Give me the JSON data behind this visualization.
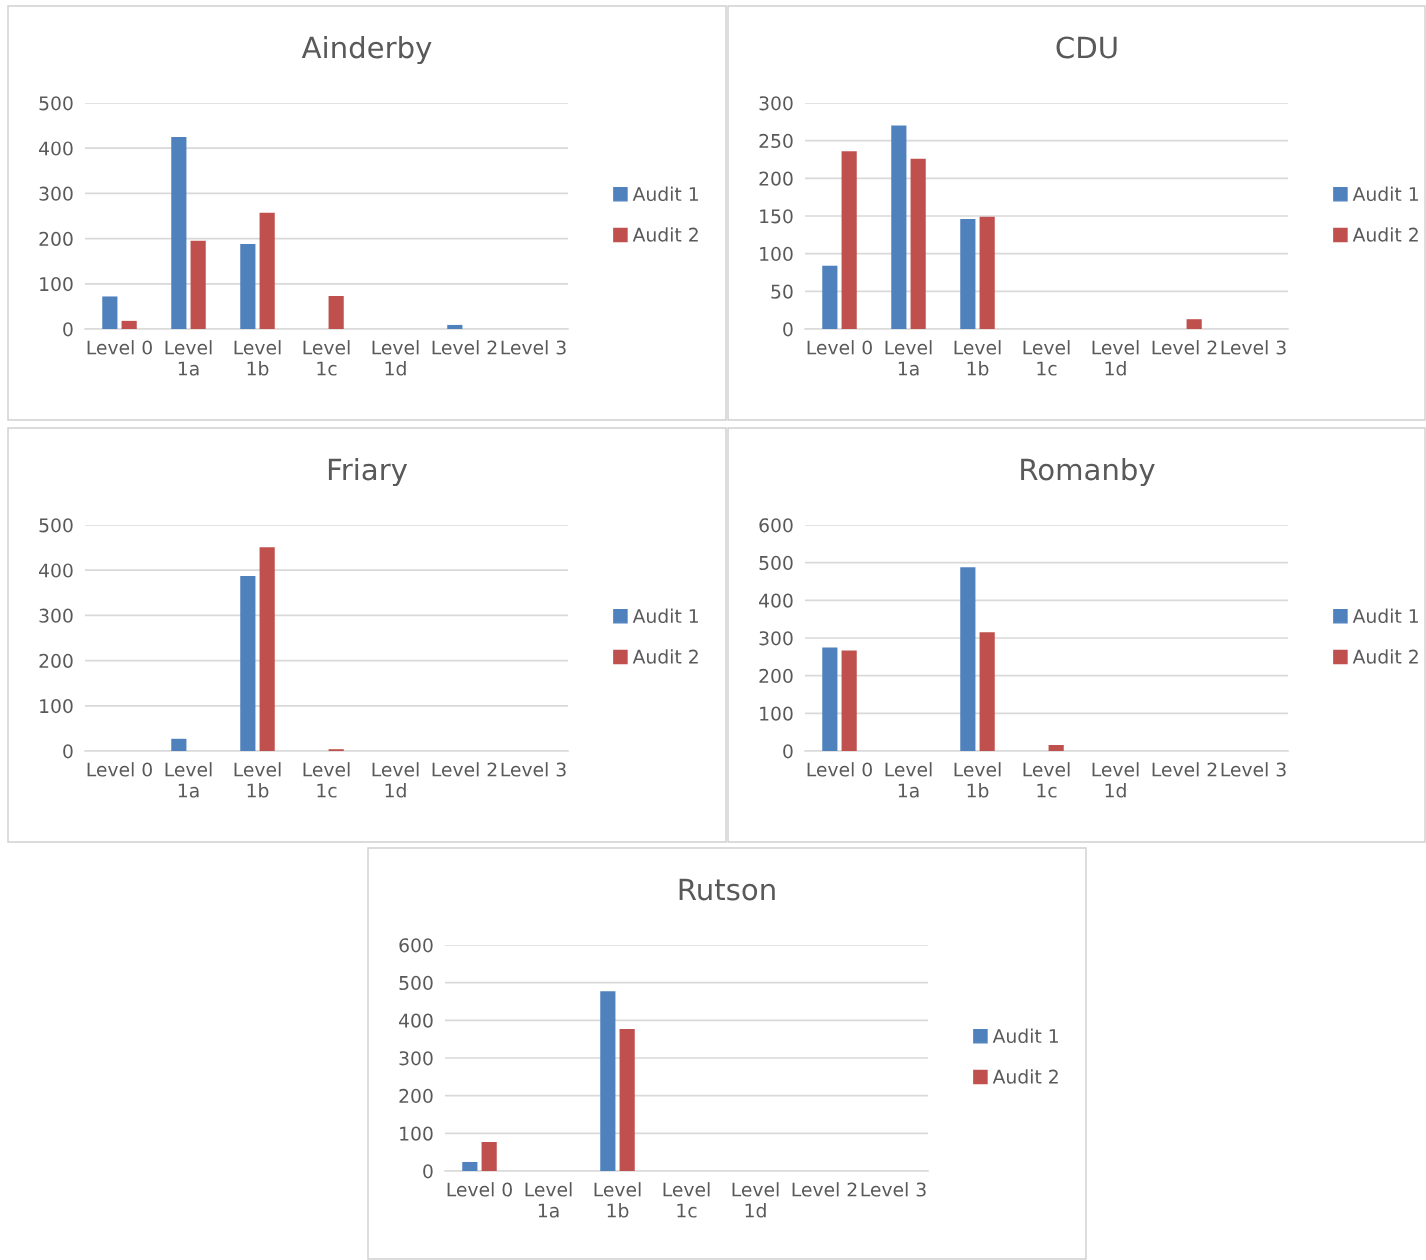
{
  "chart_data": [
    {
      "type": "bar",
      "title": "Ainderby",
      "categories": [
        "Level 0",
        "Level 1a",
        "Level 1b",
        "Level 1c",
        "Level 1d",
        "Level 2",
        "Level 3"
      ],
      "series": [
        {
          "name": "Audit 1",
          "color": "#4f81bd",
          "values": [
            72,
            425,
            188,
            0,
            0,
            9,
            0
          ]
        },
        {
          "name": "Audit 2",
          "color": "#c0504d",
          "values": [
            18,
            195,
            257,
            73,
            0,
            0,
            0
          ]
        }
      ],
      "ylim": [
        0,
        500
      ],
      "yticks": [
        0,
        100,
        200,
        300,
        400,
        500
      ],
      "grid": "y",
      "legend": "right"
    },
    {
      "type": "bar",
      "title": "CDU",
      "categories": [
        "Level 0",
        "Level 1a",
        "Level 1b",
        "Level 1c",
        "Level 1d",
        "Level 2",
        "Level 3"
      ],
      "series": [
        {
          "name": "Audit 1",
          "color": "#4f81bd",
          "values": [
            84,
            270,
            146,
            0,
            0,
            0,
            0
          ]
        },
        {
          "name": "Audit 2",
          "color": "#c0504d",
          "values": [
            236,
            226,
            149,
            0,
            0,
            13,
            0
          ]
        }
      ],
      "ylim": [
        0,
        300
      ],
      "yticks": [
        0,
        50,
        100,
        150,
        200,
        250,
        300
      ],
      "grid": "y",
      "legend": "right"
    },
    {
      "type": "bar",
      "title": "Friary",
      "categories": [
        "Level 0",
        "Level 1a",
        "Level 1b",
        "Level 1c",
        "Level 1d",
        "Level 2",
        "Level 3"
      ],
      "series": [
        {
          "name": "Audit 1",
          "color": "#4f81bd",
          "values": [
            0,
            27,
            387,
            0,
            0,
            0,
            0
          ]
        },
        {
          "name": "Audit 2",
          "color": "#c0504d",
          "values": [
            0,
            0,
            451,
            4,
            0,
            0,
            0
          ]
        }
      ],
      "ylim": [
        0,
        500
      ],
      "yticks": [
        0,
        100,
        200,
        300,
        400,
        500
      ],
      "grid": "y",
      "legend": "right"
    },
    {
      "type": "bar",
      "title": "Romanby",
      "categories": [
        "Level 0",
        "Level 1a",
        "Level 1b",
        "Level 1c",
        "Level 1d",
        "Level 2",
        "Level 3"
      ],
      "series": [
        {
          "name": "Audit 1",
          "color": "#4f81bd",
          "values": [
            275,
            0,
            488,
            0,
            0,
            0,
            0
          ]
        },
        {
          "name": "Audit 2",
          "color": "#c0504d",
          "values": [
            267,
            0,
            315,
            16,
            0,
            0,
            null
          ]
        }
      ],
      "ylim": [
        0,
        600
      ],
      "yticks": [
        0,
        100,
        200,
        300,
        400,
        500,
        600
      ],
      "grid": "y",
      "legend": "right"
    },
    {
      "type": "bar",
      "title": "Rutson",
      "categories": [
        "Level 0",
        "Level 1a",
        "Level 1b",
        "Level 1c",
        "Level 1d",
        "Level 2",
        "Level 3"
      ],
      "series": [
        {
          "name": "Audit 1",
          "color": "#4f81bd",
          "values": [
            24,
            0,
            477,
            0,
            0,
            0,
            0
          ]
        },
        {
          "name": "Audit 2",
          "color": "#c0504d",
          "values": [
            77,
            0,
            377,
            0,
            0,
            0,
            0
          ]
        }
      ],
      "ylim": [
        0,
        600
      ],
      "yticks": [
        0,
        100,
        200,
        300,
        400,
        500,
        600
      ],
      "grid": "y",
      "legend": "right"
    }
  ]
}
